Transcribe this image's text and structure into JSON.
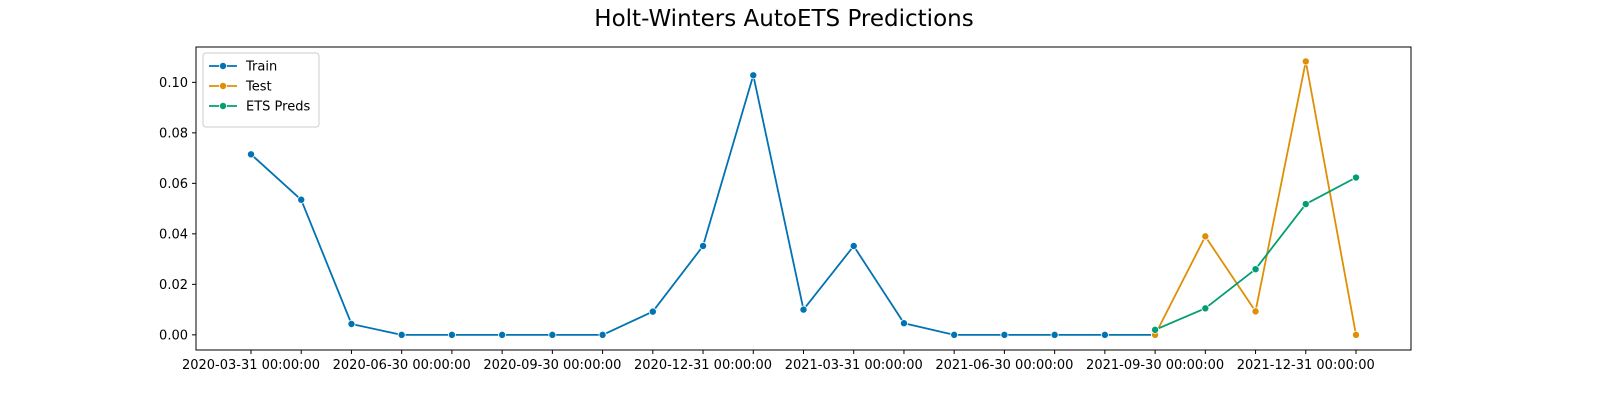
{
  "chart_data": {
    "type": "line",
    "title": "Holt-Winters AutoETS Predictions",
    "xlabel": "",
    "ylabel": "",
    "ylim": [
      -0.006,
      0.114
    ],
    "y_ticks": [
      "0.00",
      "0.02",
      "0.04",
      "0.06",
      "0.08",
      "0.10"
    ],
    "y_tick_values": [
      0.0,
      0.02,
      0.04,
      0.06,
      0.08,
      0.1
    ],
    "x_tick_labels": [
      "2020-03-31 00:00:00",
      "2020-06-30 00:00:00",
      "2020-09-30 00:00:00",
      "2020-12-31 00:00:00",
      "2021-03-31 00:00:00",
      "2021-06-30 00:00:00",
      "2021-09-30 00:00:00",
      "2021-12-31 00:00:00"
    ],
    "x": [
      "2020-03-31",
      "2020-04-30",
      "2020-05-31",
      "2020-06-30",
      "2020-07-31",
      "2020-08-31",
      "2020-09-30",
      "2020-10-31",
      "2020-11-30",
      "2020-12-31",
      "2021-01-31",
      "2021-02-28",
      "2021-03-31",
      "2021-04-30",
      "2021-05-31",
      "2021-06-30",
      "2021-07-31",
      "2021-08-31",
      "2021-09-30",
      "2021-10-31",
      "2021-11-30",
      "2021-12-31",
      "2022-01-31"
    ],
    "legend_position": "top-left",
    "grid": false,
    "series": [
      {
        "name": "Train",
        "color": "#0173b2",
        "x": [
          "2020-03-31",
          "2020-04-30",
          "2020-05-31",
          "2020-06-30",
          "2020-07-31",
          "2020-08-31",
          "2020-09-30",
          "2020-10-31",
          "2020-11-30",
          "2020-12-31",
          "2021-01-31",
          "2021-02-28",
          "2021-03-31",
          "2021-04-30",
          "2021-05-31",
          "2021-06-30",
          "2021-07-31",
          "2021-08-31",
          "2021-09-30"
        ],
        "values": [
          0.0715,
          0.0535,
          0.0043,
          0.0,
          0.0,
          0.0,
          0.0,
          0.0,
          0.0092,
          0.0352,
          0.1028,
          0.01,
          0.0352,
          0.0046,
          0.0,
          0.0,
          0.0,
          0.0,
          0.0
        ]
      },
      {
        "name": "Test",
        "color": "#de8f05",
        "x": [
          "2021-09-30",
          "2021-10-31",
          "2021-11-30",
          "2021-12-31",
          "2022-01-31"
        ],
        "values": [
          0.0,
          0.039,
          0.0093,
          0.1083,
          0.0
        ]
      },
      {
        "name": "ETS Preds",
        "color": "#029e73",
        "x": [
          "2021-09-30",
          "2021-10-31",
          "2021-11-30",
          "2021-12-31",
          "2022-01-31"
        ],
        "values": [
          0.002,
          0.0105,
          0.026,
          0.0518,
          0.0623
        ]
      }
    ]
  }
}
